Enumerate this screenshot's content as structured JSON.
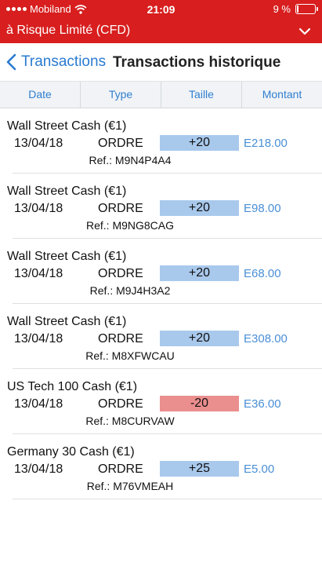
{
  "status_bar": {
    "carrier": "Mobiland",
    "time": "21:09",
    "battery": "9 %"
  },
  "account": {
    "title": "à Risque Limité (CFD)"
  },
  "nav": {
    "back_label": "Transactions",
    "title": "Transactions historique"
  },
  "columns": [
    "Date",
    "Type",
    "Taille",
    "Montant"
  ],
  "colors": {
    "header_red": "#d81e1e",
    "accent_blue": "#2f7fcf",
    "positive_bg": "#a9c9ec",
    "negative_bg": "#eb8e8e"
  },
  "transactions": [
    {
      "name": "Wall Street Cash (€1)",
      "date": "13/04/18",
      "type": "ORDRE",
      "size": "+20",
      "amount": "E218.00",
      "ref": "Ref.: M9N4P4A4"
    },
    {
      "name": "Wall Street Cash (€1)",
      "date": "13/04/18",
      "type": "ORDRE",
      "size": "+20",
      "amount": "E98.00",
      "ref": "Ref.: M9NG8CAG"
    },
    {
      "name": "Wall Street Cash (€1)",
      "date": "13/04/18",
      "type": "ORDRE",
      "size": "+20",
      "amount": "E68.00",
      "ref": "Ref.: M9J4H3A2"
    },
    {
      "name": "Wall Street Cash (€1)",
      "date": "13/04/18",
      "type": "ORDRE",
      "size": "+20",
      "amount": "E308.00",
      "ref": "Ref.: M8XFWCAU"
    },
    {
      "name": "US Tech 100 Cash (€1)",
      "date": "13/04/18",
      "type": "ORDRE",
      "size": "-20",
      "amount": "E36.00",
      "ref": "Ref.: M8CURVAW"
    },
    {
      "name": "Germany 30 Cash (€1)",
      "date": "13/04/18",
      "type": "ORDRE",
      "size": "+25",
      "amount": "E5.00",
      "ref": "Ref.: M76VMEAH"
    }
  ]
}
